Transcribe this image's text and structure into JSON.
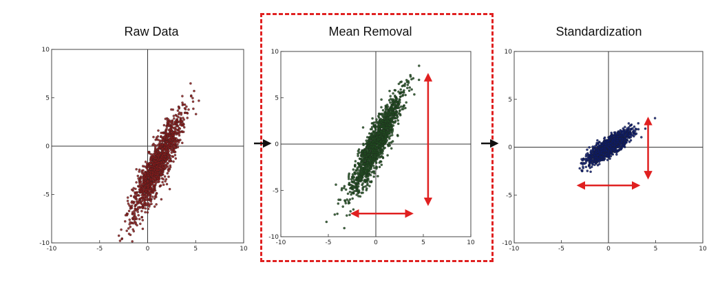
{
  "panels": [
    {
      "title": "Raw Data"
    },
    {
      "title": "Mean Removal"
    },
    {
      "title": "Standardization"
    }
  ],
  "colors": {
    "raw": "#8b1a1a",
    "mean_removal": "#1e4d1e",
    "standardization": "#0b1a6e",
    "arrows": "#e02020",
    "highlight_box": "#e02020",
    "flow_arrows": "#111111"
  },
  "chart_data": [
    {
      "type": "scatter",
      "title": "Raw Data",
      "xlim": [
        -10,
        10
      ],
      "ylim": [
        -10,
        10
      ],
      "xticks": [
        -10,
        -5,
        0,
        5,
        10
      ],
      "yticks": [
        -10,
        -5,
        0,
        5,
        10
      ],
      "xtick_labels": [
        "-10",
        "-5",
        "0",
        "5",
        "10"
      ],
      "ytick_labels": [
        "-10",
        "-5",
        "0",
        "5",
        "10"
      ],
      "distribution": {
        "center": [
          1.0,
          -2.0
        ],
        "axis_angle_deg": 65,
        "spread_major": 2.9,
        "spread_minor": 0.55,
        "n_points": 1400
      },
      "color": "#8b1a1a"
    },
    {
      "type": "scatter",
      "title": "Mean Removal",
      "xlim": [
        -10,
        10
      ],
      "ylim": [
        -10,
        10
      ],
      "xticks": [
        -10,
        -5,
        0,
        5,
        10
      ],
      "yticks": [
        -10,
        -5,
        0,
        5,
        10
      ],
      "xtick_labels": [
        "-10",
        "-5",
        "0",
        "5",
        "10"
      ],
      "ytick_labels": [
        "-10",
        "-5",
        "0",
        "5",
        "10"
      ],
      "distribution": {
        "center": [
          0,
          0
        ],
        "axis_angle_deg": 65,
        "spread_major": 2.9,
        "spread_minor": 0.55,
        "n_points": 1400
      },
      "color": "#1e4d1e",
      "annotations": [
        {
          "kind": "double-arrow",
          "from": [
            -2.5,
            -7.5
          ],
          "to": [
            3.8,
            -7.5
          ]
        },
        {
          "kind": "double-arrow",
          "from": [
            5.5,
            7.5
          ],
          "to": [
            5.5,
            -6.5
          ]
        }
      ]
    },
    {
      "type": "scatter",
      "title": "Standardization",
      "xlim": [
        -10,
        10
      ],
      "ylim": [
        -10,
        10
      ],
      "xticks": [
        -10,
        -5,
        0,
        5,
        10
      ],
      "yticks": [
        -10,
        -5,
        0,
        5,
        10
      ],
      "xtick_labels": [
        "-10",
        "-5",
        "0",
        "5",
        "10"
      ],
      "ytick_labels": [
        "-10",
        "-5",
        "0",
        "5",
        "10"
      ],
      "distribution": {
        "center": [
          0,
          0
        ],
        "axis_angle_deg": 35,
        "spread_major": 1.35,
        "spread_minor": 0.38,
        "n_points": 1400
      },
      "color": "#0b1a6e",
      "annotations": [
        {
          "kind": "double-arrow",
          "from": [
            -3.2,
            -4.0
          ],
          "to": [
            3.2,
            -4.0
          ]
        },
        {
          "kind": "double-arrow",
          "from": [
            4.2,
            3.0
          ],
          "to": [
            4.2,
            -3.2
          ]
        }
      ]
    }
  ]
}
